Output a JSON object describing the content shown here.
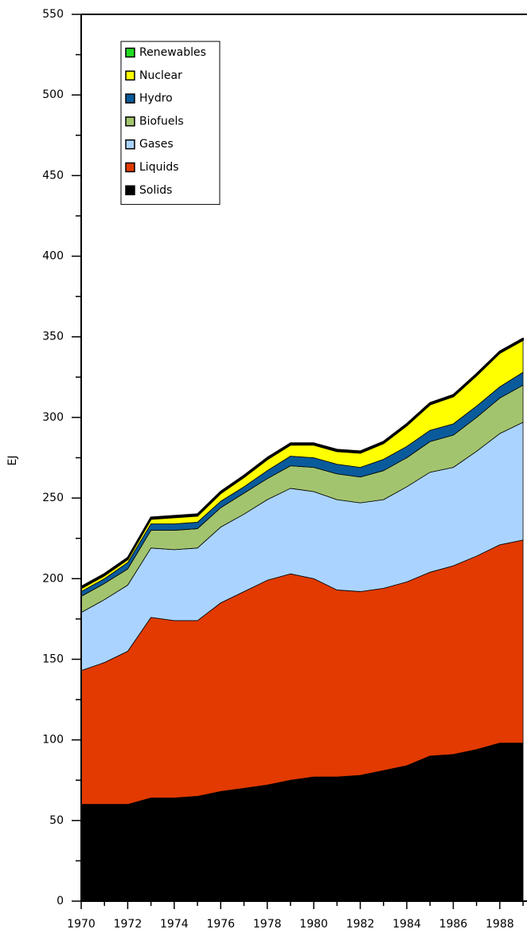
{
  "chart_data": {
    "type": "stacked-area",
    "y_label": "EJ",
    "x": [
      1970,
      1971,
      1972,
      1973,
      1974,
      1975,
      1976,
      1977,
      1978,
      1979,
      1980,
      1981,
      1982,
      1983,
      1984,
      1985,
      1986,
      1987,
      1988,
      1989
    ],
    "series": [
      {
        "name": "Solids",
        "color": "#000000",
        "values": [
          60,
          60,
          60,
          64,
          64,
          65,
          68,
          70,
          72,
          75,
          77,
          77,
          78,
          81,
          84,
          90,
          91,
          94,
          98,
          98
        ]
      },
      {
        "name": "Liquids",
        "color": "#e23a00",
        "values": [
          83,
          88,
          95,
          112,
          110,
          109,
          117,
          122,
          127,
          128,
          123,
          116,
          114,
          113,
          114,
          114,
          117,
          120,
          123,
          126
        ]
      },
      {
        "name": "Gases",
        "color": "#aad4ff",
        "values": [
          36,
          39,
          41,
          43,
          44,
          45,
          47,
          48,
          50,
          53,
          54,
          56,
          55,
          55,
          59,
          62,
          61,
          65,
          69,
          73
        ]
      },
      {
        "name": "Biofuels",
        "color": "#a3c46e",
        "values": [
          10,
          10,
          10,
          11,
          12,
          12,
          12,
          13,
          13,
          14,
          15,
          16,
          16,
          18,
          18,
          19,
          20,
          21,
          22,
          23
        ]
      },
      {
        "name": "Hydro",
        "color": "#0a5b9c",
        "values": [
          3,
          3,
          4,
          4,
          4,
          4,
          4,
          4,
          5,
          6,
          6,
          6,
          6,
          7,
          7,
          7,
          7,
          7,
          7,
          8
        ]
      },
      {
        "name": "Nuclear",
        "color": "#ffff00",
        "values": [
          2,
          2,
          2,
          3,
          4,
          4,
          5,
          6,
          7,
          7,
          8,
          8,
          9,
          10,
          13,
          16,
          17,
          19,
          21,
          20
        ]
      },
      {
        "name": "Renewables",
        "color": "#22dd22",
        "values": [
          1,
          1,
          1,
          1,
          1,
          1,
          1,
          1,
          1,
          1,
          1,
          1,
          1,
          1,
          1,
          1,
          1,
          1,
          1,
          1
        ]
      }
    ],
    "xlim": [
      1970,
      1989.17
    ],
    "xticks": [
      1970,
      1972,
      1974,
      1976,
      1978,
      1980,
      1982,
      1984,
      1986,
      1988
    ],
    "xminor_ticks": [
      1971,
      1973,
      1975,
      1977,
      1979,
      1981,
      1983,
      1985,
      1987,
      1989
    ],
    "ylim": [
      0,
      550
    ],
    "yticks": [
      0,
      50,
      100,
      150,
      200,
      250,
      300,
      350,
      400,
      450,
      500,
      550
    ],
    "yminor_ticks": [
      25,
      75,
      125,
      175,
      225,
      275,
      325,
      375,
      425,
      475,
      525
    ],
    "legend": "upper-left"
  }
}
